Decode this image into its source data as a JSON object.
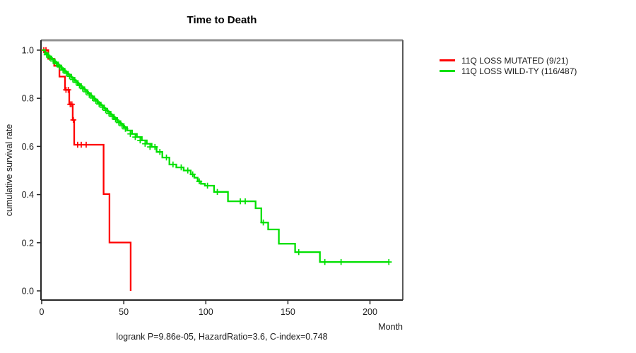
{
  "chart_data": {
    "type": "line",
    "subtype": "kaplan-meier-step",
    "title": "Time to Death",
    "xlabel": "Month",
    "ylabel": "cumulative survival rate",
    "annotation": "logrank P=9.86e-05, HazardRatio=3.6, C-index=0.748",
    "xlim": [
      0,
      220
    ],
    "ylim": [
      0,
      1
    ],
    "xticks": [
      0,
      50,
      100,
      150,
      200
    ],
    "yticks": [
      "0.0",
      "0.2",
      "0.4",
      "0.6",
      "0.8",
      "1.0"
    ],
    "grid": false,
    "legend_position": "right-outside",
    "axis_color": "#262626",
    "series": [
      {
        "name": "11Q LOSS MUTATED (9/21)",
        "color": "#ff0000",
        "points": [
          [
            0,
            1.0
          ],
          [
            4,
            0.964
          ],
          [
            7.6,
            0.935
          ],
          [
            10.8,
            0.89
          ],
          [
            14.2,
            0.835
          ],
          [
            16.8,
            0.775
          ],
          [
            18.9,
            0.71
          ],
          [
            19.8,
            0.607
          ],
          [
            37.7,
            0.402
          ],
          [
            41.3,
            0.201
          ],
          [
            54.2,
            0
          ]
        ],
        "censors": [
          [
            1.3,
            1.0
          ],
          [
            2.6,
            1.0
          ],
          [
            14.8,
            0.835
          ],
          [
            16.2,
            0.835
          ],
          [
            17.4,
            0.775
          ],
          [
            18.4,
            0.775
          ],
          [
            19.3,
            0.71
          ],
          [
            21.9,
            0.607
          ],
          [
            24.1,
            0.607
          ],
          [
            27.1,
            0.607
          ]
        ]
      },
      {
        "name": "11Q LOSS WILD-TY (116/487)",
        "color": "#00e000",
        "points": [
          [
            0,
            1.0
          ],
          [
            2,
            0.987
          ],
          [
            4,
            0.974
          ],
          [
            6,
            0.962
          ],
          [
            8,
            0.949
          ],
          [
            10,
            0.936
          ],
          [
            12,
            0.923
          ],
          [
            14,
            0.91
          ],
          [
            16,
            0.898
          ],
          [
            18,
            0.885
          ],
          [
            20,
            0.872
          ],
          [
            22,
            0.859
          ],
          [
            24,
            0.846
          ],
          [
            26,
            0.834
          ],
          [
            28,
            0.821
          ],
          [
            30,
            0.808
          ],
          [
            32,
            0.795
          ],
          [
            34,
            0.782
          ],
          [
            36,
            0.77
          ],
          [
            38,
            0.757
          ],
          [
            40,
            0.744
          ],
          [
            42,
            0.731
          ],
          [
            44,
            0.718
          ],
          [
            46,
            0.705
          ],
          [
            48,
            0.693
          ],
          [
            50,
            0.68
          ],
          [
            52,
            0.666
          ],
          [
            55,
            0.652
          ],
          [
            58,
            0.639
          ],
          [
            61,
            0.625
          ],
          [
            64,
            0.611
          ],
          [
            67,
            0.598
          ],
          [
            70,
            0.577
          ],
          [
            73.5,
            0.554
          ],
          [
            77.8,
            0.525
          ],
          [
            82,
            0.513
          ],
          [
            86.5,
            0.5
          ],
          [
            90.8,
            0.484
          ],
          [
            93,
            0.47
          ],
          [
            95,
            0.455
          ],
          [
            97,
            0.445
          ],
          [
            99.4,
            0.437
          ],
          [
            105,
            0.411
          ],
          [
            113.5,
            0.372
          ],
          [
            130.3,
            0.343
          ],
          [
            133.8,
            0.284
          ],
          [
            138,
            0.255
          ],
          [
            144.5,
            0.196
          ],
          [
            154.4,
            0.161
          ],
          [
            169.5,
            0.12
          ],
          [
            211.5,
            0.12
          ]
        ],
        "censors": [
          [
            3,
            0.981
          ],
          [
            5,
            0.968
          ],
          [
            7,
            0.955
          ],
          [
            9,
            0.943
          ],
          [
            11,
            0.93
          ],
          [
            13,
            0.917
          ],
          [
            15,
            0.904
          ],
          [
            17,
            0.891
          ],
          [
            19,
            0.878
          ],
          [
            21,
            0.866
          ],
          [
            23,
            0.853
          ],
          [
            25,
            0.84
          ],
          [
            27,
            0.827
          ],
          [
            29,
            0.814
          ],
          [
            31,
            0.801
          ],
          [
            33,
            0.789
          ],
          [
            35,
            0.776
          ],
          [
            37,
            0.763
          ],
          [
            39,
            0.75
          ],
          [
            41,
            0.737
          ],
          [
            43,
            0.724
          ],
          [
            45,
            0.712
          ],
          [
            47,
            0.699
          ],
          [
            49,
            0.686
          ],
          [
            51,
            0.673
          ],
          [
            54,
            0.652
          ],
          [
            57,
            0.639
          ],
          [
            60,
            0.625
          ],
          [
            63,
            0.611
          ],
          [
            66,
            0.598
          ],
          [
            69,
            0.598
          ],
          [
            72,
            0.577
          ],
          [
            76,
            0.554
          ],
          [
            80,
            0.525
          ],
          [
            85,
            0.513
          ],
          [
            89,
            0.5
          ],
          [
            92,
            0.484
          ],
          [
            96,
            0.455
          ],
          [
            101,
            0.437
          ],
          [
            107,
            0.411
          ],
          [
            121,
            0.372
          ],
          [
            124,
            0.372
          ],
          [
            135,
            0.284
          ],
          [
            156.6,
            0.161
          ],
          [
            172.5,
            0.12
          ],
          [
            182.4,
            0.12
          ],
          [
            211.5,
            0.12
          ]
        ]
      }
    ]
  }
}
